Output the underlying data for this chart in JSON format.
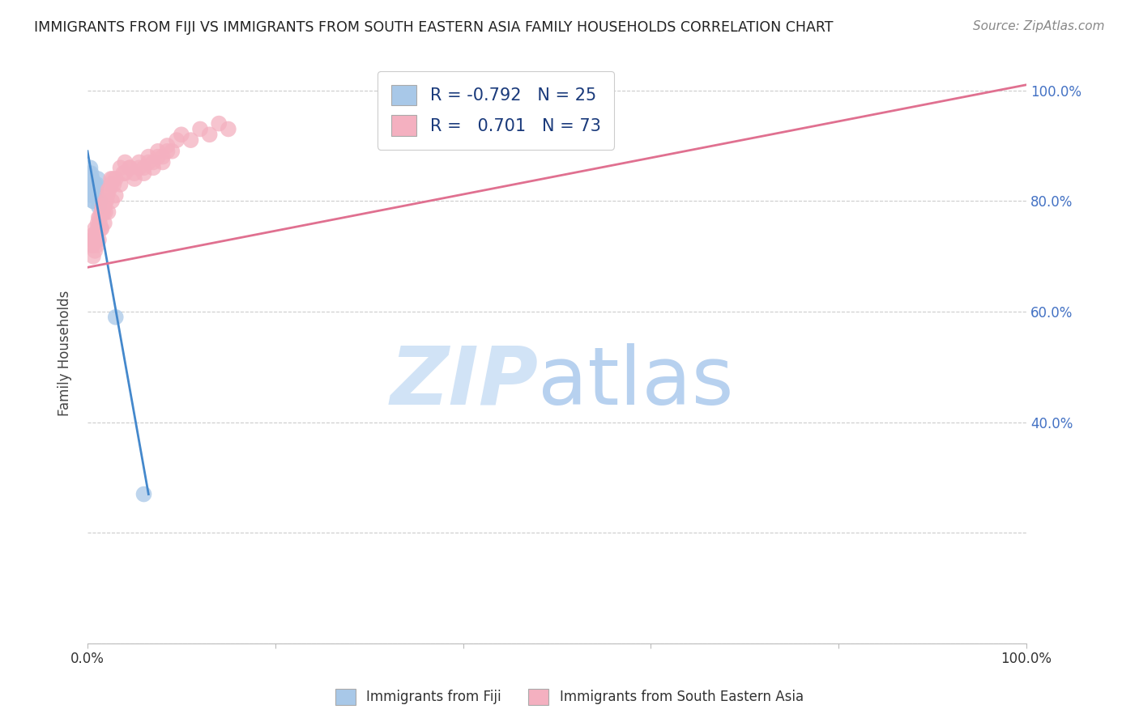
{
  "title": "IMMIGRANTS FROM FIJI VS IMMIGRANTS FROM SOUTH EASTERN ASIA FAMILY HOUSEHOLDS CORRELATION CHART",
  "source": "Source: ZipAtlas.com",
  "ylabel": "Family Households",
  "legend": {
    "fiji_R": "-0.792",
    "fiji_N": "25",
    "sea_R": "0.701",
    "sea_N": "73"
  },
  "fiji_color": "#a8c8e8",
  "fiji_line_color": "#4488cc",
  "sea_color": "#f4b0c0",
  "sea_line_color": "#e07090",
  "background": "#ffffff",
  "grid_color": "#cccccc",
  "fiji_scatter_x": [
    0.001,
    0.002,
    0.003,
    0.004,
    0.005,
    0.006,
    0.007,
    0.008,
    0.009,
    0.01,
    0.011,
    0.012,
    0.013,
    0.003,
    0.004,
    0.005,
    0.006,
    0.007,
    0.002,
    0.003,
    0.004,
    0.005,
    0.006,
    0.06,
    0.03
  ],
  "fiji_scatter_y": [
    0.82,
    0.84,
    0.83,
    0.85,
    0.84,
    0.83,
    0.82,
    0.83,
    0.82,
    0.83,
    0.84,
    0.79,
    0.8,
    0.86,
    0.84,
    0.81,
    0.8,
    0.82,
    0.85,
    0.83,
    0.82,
    0.81,
    0.8,
    0.27,
    0.59
  ],
  "sea_scatter_x": [
    0.004,
    0.005,
    0.006,
    0.007,
    0.008,
    0.009,
    0.01,
    0.011,
    0.012,
    0.013,
    0.014,
    0.015,
    0.016,
    0.017,
    0.018,
    0.019,
    0.02,
    0.022,
    0.025,
    0.028,
    0.03,
    0.035,
    0.038,
    0.04,
    0.045,
    0.05,
    0.055,
    0.06,
    0.065,
    0.07,
    0.075,
    0.08,
    0.085,
    0.09,
    0.095,
    0.1,
    0.11,
    0.12,
    0.13,
    0.14,
    0.15,
    0.006,
    0.008,
    0.01,
    0.012,
    0.015,
    0.018,
    0.022,
    0.026,
    0.03,
    0.035,
    0.04,
    0.045,
    0.05,
    0.055,
    0.06,
    0.065,
    0.07,
    0.075,
    0.08,
    0.085,
    0.005,
    0.007,
    0.009,
    0.011,
    0.013,
    0.015,
    0.017,
    0.019,
    0.021,
    0.023,
    0.025,
    0.027
  ],
  "sea_scatter_y": [
    0.73,
    0.72,
    0.73,
    0.74,
    0.75,
    0.74,
    0.73,
    0.75,
    0.77,
    0.76,
    0.75,
    0.78,
    0.79,
    0.78,
    0.79,
    0.78,
    0.8,
    0.82,
    0.84,
    0.83,
    0.84,
    0.86,
    0.85,
    0.87,
    0.86,
    0.85,
    0.87,
    0.86,
    0.88,
    0.87,
    0.89,
    0.88,
    0.9,
    0.89,
    0.91,
    0.92,
    0.91,
    0.93,
    0.92,
    0.94,
    0.93,
    0.7,
    0.71,
    0.72,
    0.73,
    0.75,
    0.76,
    0.78,
    0.8,
    0.81,
    0.83,
    0.85,
    0.86,
    0.84,
    0.86,
    0.85,
    0.87,
    0.86,
    0.88,
    0.87,
    0.89,
    0.72,
    0.73,
    0.74,
    0.76,
    0.77,
    0.78,
    0.79,
    0.8,
    0.81,
    0.82,
    0.83,
    0.84
  ],
  "xlim": [
    0.0,
    1.0
  ],
  "ylim": [
    0.0,
    1.05
  ],
  "fiji_line_x0": 0.0,
  "fiji_line_y0": 0.89,
  "fiji_line_x1": 0.065,
  "fiji_line_y1": 0.27,
  "sea_line_x0": 0.0,
  "sea_line_y0": 0.68,
  "sea_line_x1": 1.0,
  "sea_line_y1": 1.01
}
